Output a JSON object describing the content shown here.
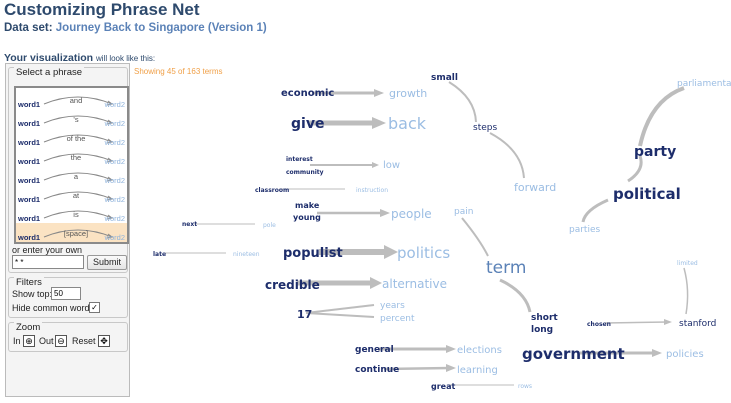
{
  "header": {
    "title": "Customizing Phrase Net",
    "dataset_label": "Data set:",
    "dataset_name": "Journey Back to Singapore (Version 1)",
    "yourvis": "Your visualization",
    "yourvis_small": "will look like this:"
  },
  "sidebar": {
    "select_phrase_legend": "Select a phrase",
    "phrases": [
      {
        "w1": "word1",
        "conn": "and",
        "w2": "word2"
      },
      {
        "w1": "word1",
        "conn": "'s",
        "w2": "word2"
      },
      {
        "w1": "word1",
        "conn": "of the",
        "w2": "word2"
      },
      {
        "w1": "word1",
        "conn": "the",
        "w2": "word2"
      },
      {
        "w1": "word1",
        "conn": "a",
        "w2": "word2"
      },
      {
        "w1": "word1",
        "conn": "at",
        "w2": "word2"
      },
      {
        "w1": "word1",
        "conn": "is",
        "w2": "word2"
      },
      {
        "w1": "word1",
        "conn": "[space]",
        "w2": "word2"
      }
    ],
    "enter_own_label": "or enter your own",
    "pattern_value": "* *",
    "submit_label": "Submit",
    "filters_legend": "Filters",
    "show_top_label": "Show top:",
    "show_top_value": "50",
    "hide_common_label": "Hide common words",
    "hide_common_checked": true,
    "zoom_legend": "Zoom",
    "zoom_in": "In",
    "zoom_out": "Out",
    "zoom_reset": "Reset"
  },
  "vis": {
    "showing_text": "Showing 45 of 163 terms",
    "words": [
      "economic",
      "growth",
      "give",
      "back",
      "interest",
      "community",
      "low",
      "classroom",
      "instruction",
      "next",
      "pole",
      "make",
      "young",
      "people",
      "late",
      "nineteen",
      "populist",
      "politics",
      "credible",
      "alternative",
      "17",
      "years",
      "percent",
      "small",
      "steps",
      "forward",
      "party",
      "parliamentary",
      "political",
      "parties",
      "pain",
      "term",
      "short",
      "long",
      "chosen",
      "stanford",
      "limited",
      "general",
      "elections",
      "continue",
      "learning",
      "great",
      "rows",
      "government",
      "policies"
    ]
  }
}
